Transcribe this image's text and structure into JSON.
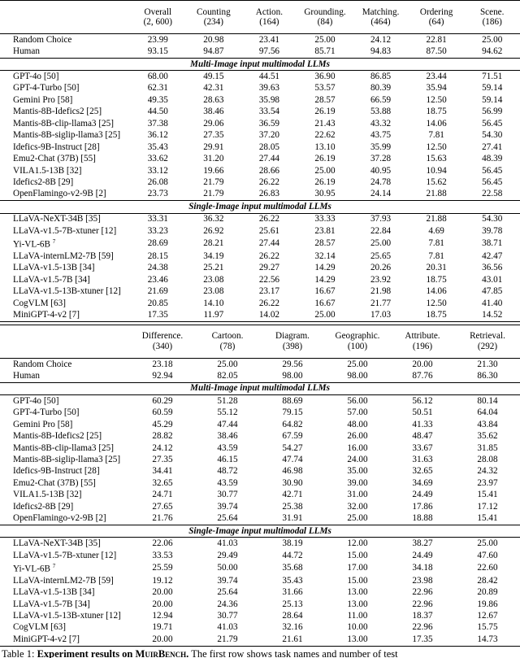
{
  "tables": [
    {
      "columns": [
        {
          "name": "Overall",
          "count": "(2, 600)"
        },
        {
          "name": "Counting",
          "count": "(234)"
        },
        {
          "name": "Action.",
          "count": "(164)"
        },
        {
          "name": "Grounding.",
          "count": "(84)"
        },
        {
          "name": "Matching.",
          "count": "(464)"
        },
        {
          "name": "Ordering",
          "count": "(64)"
        },
        {
          "name": "Scene.",
          "count": "(186)"
        }
      ],
      "groups": [
        {
          "rows": [
            {
              "name": "Random Choice",
              "values": [
                "23.99",
                "20.98",
                "23.41",
                "25.00",
                "24.12",
                "22.81",
                "25.00"
              ]
            },
            {
              "name": "Human",
              "values": [
                "93.15",
                "94.87",
                "97.56",
                "85.71",
                "94.83",
                "87.50",
                "94.62"
              ]
            }
          ]
        },
        {
          "title": "Multi-Image input multimodal LLMs",
          "rows": [
            {
              "name": "GPT-4o [50]",
              "values": [
                "68.00",
                "49.15",
                "44.51",
                "36.90",
                "86.85",
                "23.44",
                "71.51"
              ]
            },
            {
              "name": "GPT-4-Turbo [50]",
              "values": [
                "62.31",
                "42.31",
                "39.63",
                "53.57",
                "80.39",
                "35.94",
                "59.14"
              ]
            },
            {
              "name": "Gemini Pro [58]",
              "values": [
                "49.35",
                "28.63",
                "35.98",
                "28.57",
                "66.59",
                "12.50",
                "59.14"
              ]
            },
            {
              "name": "Mantis-8B-Idefics2 [25]",
              "values": [
                "44.50",
                "38.46",
                "33.54",
                "26.19",
                "53.88",
                "18.75",
                "56.99"
              ]
            },
            {
              "name": "Mantis-8B-clip-llama3 [25]",
              "values": [
                "37.38",
                "29.06",
                "36.59",
                "21.43",
                "43.32",
                "14.06",
                "56.45"
              ]
            },
            {
              "name": "Mantis-8B-siglip-llama3 [25]",
              "values": [
                "36.12",
                "27.35",
                "37.20",
                "22.62",
                "43.75",
                "7.81",
                "54.30"
              ]
            },
            {
              "name": "Idefics-9B-Instruct [28]",
              "values": [
                "35.43",
                "29.91",
                "28.05",
                "13.10",
                "35.99",
                "12.50",
                "27.41"
              ]
            },
            {
              "name": "Emu2-Chat (37B) [55]",
              "values": [
                "33.62",
                "31.20",
                "27.44",
                "26.19",
                "37.28",
                "15.63",
                "48.39"
              ]
            },
            {
              "name": "VILA1.5-13B [32]",
              "values": [
                "33.12",
                "19.66",
                "28.66",
                "25.00",
                "40.95",
                "10.94",
                "56.45"
              ]
            },
            {
              "name": "Idefics2-8B [29]",
              "values": [
                "26.08",
                "21.79",
                "26.22",
                "26.19",
                "24.78",
                "15.62",
                "56.45"
              ]
            },
            {
              "name": "OpenFlamingo-v2-9B [2]",
              "values": [
                "23.73",
                "21.79",
                "26.83",
                "30.95",
                "24.14",
                "21.88",
                "22.58"
              ]
            }
          ]
        },
        {
          "title": "Single-Image input multimodal LLMs",
          "rows": [
            {
              "name": "LLaVA-NeXT-34B [35]",
              "values": [
                "33.31",
                "36.32",
                "26.22",
                "33.33",
                "37.93",
                "21.88",
                "54.30"
              ]
            },
            {
              "name": "LLaVA-v1.5-7B-xtuner [12]",
              "values": [
                "33.23",
                "26.92",
                "25.61",
                "23.81",
                "22.84",
                "4.69",
                "39.78"
              ]
            },
            {
              "name": "Yi-VL-6B",
              "sup": "7",
              "values": [
                "28.69",
                "28.21",
                "27.44",
                "28.57",
                "25.00",
                "7.81",
                "38.71"
              ]
            },
            {
              "name": "LLaVA-internLM2-7B [59]",
              "values": [
                "28.15",
                "34.19",
                "26.22",
                "32.14",
                "25.65",
                "7.81",
                "42.47"
              ]
            },
            {
              "name": "LLaVA-v1.5-13B [34]",
              "values": [
                "24.38",
                "25.21",
                "29.27",
                "14.29",
                "20.26",
                "20.31",
                "36.56"
              ]
            },
            {
              "name": "LLaVA-v1.5-7B [34]",
              "values": [
                "23.46",
                "23.08",
                "22.56",
                "14.29",
                "23.92",
                "18.75",
                "43.01"
              ]
            },
            {
              "name": "LLaVA-v1.5-13B-xtuner [12]",
              "values": [
                "21.69",
                "23.08",
                "23.17",
                "16.67",
                "21.98",
                "14.06",
                "47.85"
              ]
            },
            {
              "name": "CogVLM [63]",
              "values": [
                "20.85",
                "14.10",
                "26.22",
                "16.67",
                "21.77",
                "12.50",
                "41.40"
              ]
            },
            {
              "name": "MiniGPT-4-v2 [7]",
              "values": [
                "17.35",
                "11.97",
                "14.02",
                "25.00",
                "17.03",
                "18.75",
                "14.52"
              ]
            }
          ]
        }
      ]
    },
    {
      "columns": [
        {
          "name": "Difference.",
          "count": "(340)"
        },
        {
          "name": "Cartoon.",
          "count": "(78)"
        },
        {
          "name": "Diagram.",
          "count": "(398)"
        },
        {
          "name": "Geographic.",
          "count": "(100)"
        },
        {
          "name": "Attribute.",
          "count": "(196)"
        },
        {
          "name": "Retrieval.",
          "count": "(292)"
        }
      ],
      "groups": [
        {
          "rows": [
            {
              "name": "Random Choice",
              "values": [
                "23.18",
                "25.00",
                "29.56",
                "25.00",
                "20.00",
                "21.30"
              ]
            },
            {
              "name": "Human",
              "values": [
                "92.94",
                "82.05",
                "98.00",
                "98.00",
                "87.76",
                "86.30"
              ]
            }
          ]
        },
        {
          "title": "Multi-Image input multimodal LLMs",
          "rows": [
            {
              "name": "GPT-4o [50]",
              "values": [
                "60.29",
                "51.28",
                "88.69",
                "56.00",
                "56.12",
                "80.14"
              ]
            },
            {
              "name": "GPT-4-Turbo [50]",
              "values": [
                "60.59",
                "55.12",
                "79.15",
                "57.00",
                "50.51",
                "64.04"
              ]
            },
            {
              "name": "Gemini Pro [58]",
              "values": [
                "45.29",
                "47.44",
                "64.82",
                "48.00",
                "41.33",
                "43.84"
              ]
            },
            {
              "name": "Mantis-8B-Idefics2 [25]",
              "values": [
                "28.82",
                "38.46",
                "67.59",
                "26.00",
                "48.47",
                "35.62"
              ]
            },
            {
              "name": "Mantis-8B-clip-llama3 [25]",
              "values": [
                "24.12",
                "43.59",
                "54.27",
                "16.00",
                "33.67",
                "31.85"
              ]
            },
            {
              "name": "Mantis-8B-siglip-llama3 [25]",
              "values": [
                "27.35",
                "46.15",
                "47.74",
                "24.00",
                "31.63",
                "28.08"
              ]
            },
            {
              "name": "Idefics-9B-Instruct [28]",
              "values": [
                "34.41",
                "48.72",
                "46.98",
                "35.00",
                "32.65",
                "24.32"
              ]
            },
            {
              "name": "Emu2-Chat (37B) [55]",
              "values": [
                "32.65",
                "43.59",
                "30.90",
                "39.00",
                "34.69",
                "23.97"
              ]
            },
            {
              "name": "VILA1.5-13B [32]",
              "values": [
                "24.71",
                "30.77",
                "42.71",
                "31.00",
                "24.49",
                "15.41"
              ]
            },
            {
              "name": "Idefics2-8B [29]",
              "values": [
                "27.65",
                "39.74",
                "25.38",
                "32.00",
                "17.86",
                "17.12"
              ]
            },
            {
              "name": "OpenFlamingo-v2-9B [2]",
              "values": [
                "21.76",
                "25.64",
                "31.91",
                "25.00",
                "18.88",
                "15.41"
              ]
            }
          ]
        },
        {
          "title": "Single-Image input multimodal LLMs",
          "rows": [
            {
              "name": "LLaVA-NeXT-34B [35]",
              "values": [
                "22.06",
                "41.03",
                "38.19",
                "12.00",
                "38.27",
                "25.00"
              ]
            },
            {
              "name": "LLaVA-v1.5-7B-xtuner [12]",
              "values": [
                "33.53",
                "29.49",
                "44.72",
                "15.00",
                "24.49",
                "47.60"
              ]
            },
            {
              "name": "Yi-VL-6B",
              "sup": "7",
              "values": [
                "25.59",
                "50.00",
                "35.68",
                "17.00",
                "34.18",
                "22.60"
              ]
            },
            {
              "name": "LLaVA-internLM2-7B [59]",
              "values": [
                "19.12",
                "39.74",
                "35.43",
                "15.00",
                "23.98",
                "28.42"
              ]
            },
            {
              "name": "LLaVA-v1.5-13B [34]",
              "values": [
                "20.00",
                "25.64",
                "31.66",
                "13.00",
                "22.96",
                "20.89"
              ]
            },
            {
              "name": "LLaVA-v1.5-7B [34]",
              "values": [
                "20.00",
                "24.36",
                "25.13",
                "13.00",
                "22.96",
                "19.86"
              ]
            },
            {
              "name": "LLaVA-v1.5-13B-xtuner [12]",
              "values": [
                "12.94",
                "30.77",
                "28.64",
                "11.00",
                "18.37",
                "12.67"
              ]
            },
            {
              "name": "CogVLM [63]",
              "values": [
                "19.71",
                "41.03",
                "32.16",
                "10.00",
                "22.96",
                "15.75"
              ]
            },
            {
              "name": "MiniGPT-4-v2 [7]",
              "values": [
                "20.00",
                "21.79",
                "21.61",
                "13.00",
                "17.35",
                "14.73"
              ]
            }
          ]
        }
      ]
    }
  ],
  "caption": {
    "label": "Table 1:",
    "bold": "Experiment results on MuirBench.",
    "text": "The first row shows task names and number of test"
  }
}
